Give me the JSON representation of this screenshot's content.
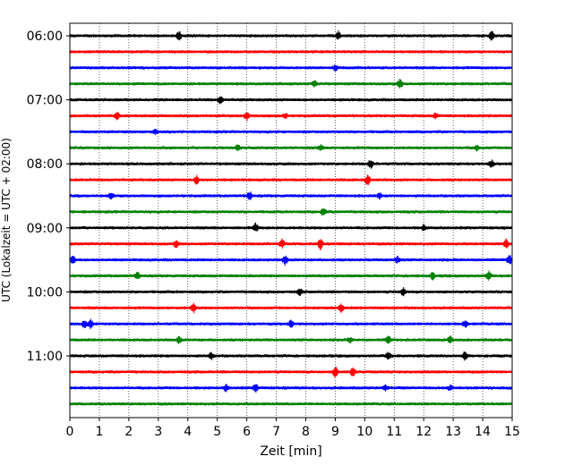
{
  "chart_data": {
    "type": "line",
    "subtype": "helicorder (stacked seismogram traces)",
    "xlabel": "Zeit  [min]",
    "ylabel": "UTC (Lokalzeit = UTC + 02:00)",
    "xlim": [
      0,
      15
    ],
    "x_ticks": [
      "0",
      "1",
      "2",
      "3",
      "4",
      "5",
      "6",
      "7",
      "8",
      "9",
      "10",
      "11",
      "12",
      "13",
      "14",
      "15"
    ],
    "y_ticks": [
      "06:00",
      "07:00",
      "08:00",
      "09:00",
      "10:00",
      "11:00"
    ],
    "grid": "vertical dotted lines at each minute",
    "colors": [
      "#000000",
      "#ff0000",
      "#0000ff",
      "#008000"
    ],
    "series": [
      {
        "start": "06:00",
        "color": "#000000",
        "events": [
          [
            3.7,
            5
          ],
          [
            9.1,
            5
          ],
          [
            14.3,
            5
          ]
        ]
      },
      {
        "start": "06:15",
        "color": "#ff0000",
        "events": []
      },
      {
        "start": "06:30",
        "color": "#0000ff",
        "events": [
          [
            9.0,
            3
          ]
        ]
      },
      {
        "start": "06:45",
        "color": "#008000",
        "events": [
          [
            8.3,
            4
          ],
          [
            11.2,
            5
          ]
        ]
      },
      {
        "start": "07:00",
        "color": "#000000",
        "events": [
          [
            5.1,
            5
          ]
        ]
      },
      {
        "start": "07:15",
        "color": "#ff0000",
        "events": [
          [
            1.6,
            4
          ],
          [
            6.0,
            5
          ],
          [
            7.3,
            3
          ],
          [
            12.4,
            3
          ]
        ]
      },
      {
        "start": "07:30",
        "color": "#0000ff",
        "events": [
          [
            2.9,
            3
          ]
        ]
      },
      {
        "start": "07:45",
        "color": "#008000",
        "events": [
          [
            5.7,
            4
          ],
          [
            8.5,
            3
          ],
          [
            13.8,
            3
          ]
        ]
      },
      {
        "start": "08:00",
        "color": "#000000",
        "events": [
          [
            10.2,
            5
          ],
          [
            14.3,
            4
          ]
        ]
      },
      {
        "start": "08:15",
        "color": "#ff0000",
        "events": [
          [
            4.3,
            5
          ],
          [
            10.1,
            6
          ]
        ]
      },
      {
        "start": "08:30",
        "color": "#0000ff",
        "events": [
          [
            1.4,
            3
          ],
          [
            6.1,
            5
          ],
          [
            10.5,
            3
          ]
        ]
      },
      {
        "start": "08:45",
        "color": "#008000",
        "events": [
          [
            8.6,
            5
          ]
        ]
      },
      {
        "start": "09:00",
        "color": "#000000",
        "events": [
          [
            6.3,
            5
          ],
          [
            12.0,
            3
          ]
        ]
      },
      {
        "start": "09:15",
        "color": "#ff0000",
        "events": [
          [
            3.6,
            4
          ],
          [
            7.2,
            5
          ],
          [
            8.5,
            6
          ],
          [
            14.8,
            5
          ]
        ]
      },
      {
        "start": "09:30",
        "color": "#0000ff",
        "events": [
          [
            0.1,
            5
          ],
          [
            7.3,
            6
          ],
          [
            11.1,
            4
          ],
          [
            14.9,
            6
          ]
        ]
      },
      {
        "start": "09:45",
        "color": "#008000",
        "events": [
          [
            2.3,
            4
          ],
          [
            12.3,
            4
          ],
          [
            14.2,
            5
          ]
        ]
      },
      {
        "start": "10:00",
        "color": "#000000",
        "events": [
          [
            7.8,
            4
          ],
          [
            11.3,
            5
          ]
        ]
      },
      {
        "start": "10:15",
        "color": "#ff0000",
        "events": [
          [
            4.2,
            6
          ],
          [
            9.2,
            5
          ]
        ]
      },
      {
        "start": "10:30",
        "color": "#0000ff",
        "events": [
          [
            0.5,
            5
          ],
          [
            0.7,
            5
          ],
          [
            7.5,
            4
          ],
          [
            13.4,
            4
          ]
        ]
      },
      {
        "start": "10:45",
        "color": "#008000",
        "events": [
          [
            3.7,
            4
          ],
          [
            9.5,
            3
          ],
          [
            10.8,
            5
          ],
          [
            12.9,
            4
          ]
        ]
      },
      {
        "start": "11:00",
        "color": "#000000",
        "events": [
          [
            4.8,
            4
          ],
          [
            10.8,
            5
          ],
          [
            13.4,
            5
          ]
        ]
      },
      {
        "start": "11:15",
        "color": "#ff0000",
        "events": [
          [
            9.0,
            6
          ],
          [
            9.6,
            6
          ]
        ]
      },
      {
        "start": "11:30",
        "color": "#0000ff",
        "events": [
          [
            5.3,
            4
          ],
          [
            6.3,
            5
          ],
          [
            10.7,
            3
          ],
          [
            12.9,
            3
          ]
        ]
      },
      {
        "start": "11:45",
        "color": "#008000",
        "events": []
      }
    ]
  }
}
